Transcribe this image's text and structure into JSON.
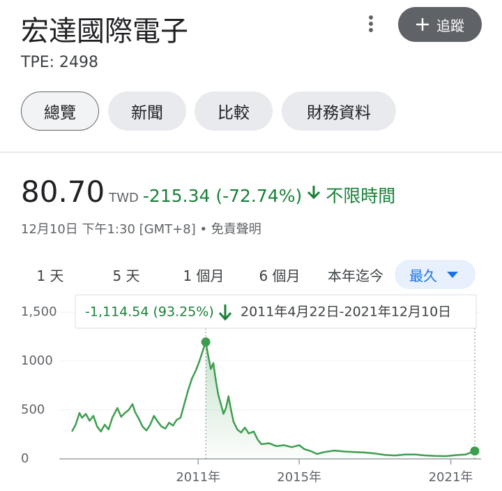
{
  "header": {
    "title": "宏達國際電子",
    "ticker": "TPE: 2498",
    "follow_button": "追蹤"
  },
  "tabs": [
    "總覽",
    "新聞",
    "比較",
    "財務資料"
  ],
  "active_tab": 0,
  "quote": {
    "price": "80.70",
    "currency": "TWD",
    "change": "-215.34 (-72.74%)",
    "period": "不限時間",
    "timestamp": "12月10日 下午1:30 [GMT+8]",
    "disclaimer": "免責聲明"
  },
  "ranges": [
    "1 天",
    "5 天",
    "1 個月",
    "6 個月",
    "本年迄今",
    "最久"
  ],
  "active_range": 5,
  "chart_data": {
    "type": "line",
    "color": "#3d9d4f",
    "tooltip": {
      "change": "-1,114.54 (93.25%)",
      "range": "2011年4月22日-2021年12月10日"
    },
    "selection": [
      2011.3,
      2021.95
    ],
    "x": [
      2006.0,
      2006.15,
      2006.3,
      2006.4,
      2006.55,
      2006.7,
      2006.85,
      2007.0,
      2007.15,
      2007.3,
      2007.45,
      2007.6,
      2007.8,
      2007.95,
      2008.1,
      2008.25,
      2008.4,
      2008.5,
      2008.65,
      2008.8,
      2008.95,
      2009.1,
      2009.25,
      2009.4,
      2009.55,
      2009.7,
      2009.85,
      2010.0,
      2010.15,
      2010.3,
      2010.45,
      2010.6,
      2010.75,
      2010.9,
      2011.05,
      2011.2,
      2011.3,
      2011.4,
      2011.5,
      2011.6,
      2011.7,
      2011.8,
      2011.9,
      2012.0,
      2012.1,
      2012.2,
      2012.3,
      2012.4,
      2012.55,
      2012.7,
      2012.85,
      2013.0,
      2013.2,
      2013.35,
      2013.5,
      2013.8,
      2014.1,
      2014.4,
      2014.7,
      2015.0,
      2015.2,
      2015.45,
      2015.7,
      2016.0,
      2016.4,
      2016.8,
      2017.2,
      2017.6,
      2018.0,
      2018.4,
      2018.8,
      2019.2,
      2019.6,
      2020.0,
      2020.4,
      2020.8,
      2021.2,
      2021.6,
      2021.95
    ],
    "values": [
      280,
      350,
      470,
      420,
      460,
      390,
      440,
      330,
      280,
      350,
      300,
      420,
      520,
      430,
      470,
      500,
      560,
      480,
      410,
      330,
      290,
      350,
      440,
      380,
      330,
      310,
      370,
      340,
      400,
      420,
      560,
      700,
      820,
      900,
      1000,
      1120,
      1195.24,
      1050,
      920,
      980,
      800,
      650,
      560,
      460,
      520,
      640,
      500,
      380,
      300,
      270,
      320,
      260,
      280,
      200,
      150,
      160,
      130,
      140,
      120,
      140,
      100,
      80,
      50,
      70,
      85,
      75,
      70,
      65,
      55,
      40,
      35,
      45,
      45,
      35,
      30,
      28,
      38,
      45,
      80.7
    ],
    "xlim": [
      2005.5,
      2022.2
    ],
    "ylim": [
      0,
      1500
    ],
    "xticks": [
      {
        "value": 2011,
        "label": "2011年"
      },
      {
        "value": 2015,
        "label": "2015年"
      },
      {
        "value": 2021,
        "label": "2021年"
      }
    ],
    "yticks": [
      0,
      500,
      1000,
      {
        "value": 1500,
        "label": "1,500"
      }
    ],
    "grid": true
  }
}
